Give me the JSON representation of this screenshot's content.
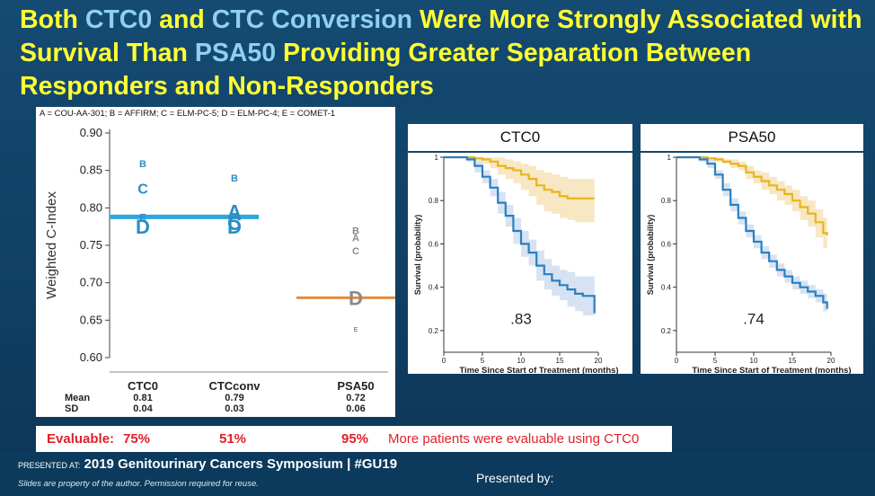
{
  "slide": {
    "title_segments": [
      {
        "text": "Both ",
        "highlight": false
      },
      {
        "text": "CTC0",
        "highlight": true
      },
      {
        "text": " and ",
        "highlight": false
      },
      {
        "text": "CTC Conversion",
        "highlight": true
      },
      {
        "text": " Were More Strongly Associated with Survival Than ",
        "highlight": false
      },
      {
        "text": "PSA50",
        "highlight": true
      },
      {
        "text": " Providing Greater Separation Between Responders and Non-Responders",
        "highlight": false
      }
    ],
    "legend_key": "A = COU-AA-301;  B = AFFIRM;  C = ELM-PC-5;  D = ELM-PC-4;  E = COMET-1",
    "colors": {
      "title_yellow": "#ffff33",
      "highlight_blue": "#8fd0f2",
      "red": "#e0212b"
    }
  },
  "chart_data": [
    {
      "type": "scatter",
      "title": "",
      "ylabel": "Weighted C-Index",
      "xlabel": "",
      "ylim": [
        0.6,
        0.9
      ],
      "yticks": [
        "0.90",
        "0.85",
        "0.80",
        "0.75",
        "0.70",
        "0.65",
        "0.60"
      ],
      "categories": [
        "CTC0",
        "CTCconv",
        "PSA50"
      ],
      "points": [
        {
          "category": "CTC0",
          "label": "B",
          "value": 0.859,
          "size": "small"
        },
        {
          "category": "CTC0",
          "label": "C",
          "value": 0.826,
          "size": "medium"
        },
        {
          "category": "CTC0",
          "label": "E",
          "value": 0.788,
          "size": "small"
        },
        {
          "category": "CTC0",
          "label": "D",
          "value": 0.775,
          "size": "large"
        },
        {
          "category": "CTCconv",
          "label": "B",
          "value": 0.84,
          "size": "small"
        },
        {
          "category": "CTCconv",
          "label": "A",
          "value": 0.795,
          "size": "large"
        },
        {
          "category": "CTCconv",
          "label": "C",
          "value": 0.78,
          "size": "large"
        },
        {
          "category": "CTCconv",
          "label": "D",
          "value": 0.775,
          "size": "large"
        },
        {
          "category": "PSA50",
          "label": "B",
          "value": 0.77,
          "size": "small"
        },
        {
          "category": "PSA50",
          "label": "A",
          "value": 0.76,
          "size": "small"
        },
        {
          "category": "PSA50",
          "label": "C",
          "value": 0.743,
          "size": "small"
        },
        {
          "category": "PSA50",
          "label": "D",
          "value": 0.68,
          "size": "large"
        },
        {
          "category": "PSA50",
          "label": "E",
          "value": 0.638,
          "size": "xsmall"
        }
      ],
      "mean_lines": [
        {
          "categories": [
            "CTC0",
            "CTCconv"
          ],
          "value": 0.788,
          "color": "#2da7de"
        },
        {
          "categories": [
            "PSA50"
          ],
          "value": 0.68,
          "color": "#e98a3c"
        }
      ],
      "stats": {
        "mean_label": "Mean",
        "sd_label": "SD",
        "mean": [
          "0.81",
          "0.79",
          "0.72"
        ],
        "sd": [
          "0.04",
          "0.03",
          "0.06"
        ]
      }
    },
    {
      "type": "line",
      "title": "CTC0",
      "xlabel": "Time Since Start of Treatment (months)",
      "ylabel": "Survival (probability)",
      "xlim": [
        0,
        20
      ],
      "ylim": [
        0.1,
        1.0
      ],
      "xticks": [
        "0",
        "5",
        "10",
        "15",
        "20"
      ],
      "yticks": [
        "1",
        "0.8",
        "0.6",
        "0.4",
        "0.2"
      ],
      "annotation": ".83",
      "series": [
        {
          "name": "responders",
          "color": "#e8b51c",
          "band": "#f4dfae",
          "x": [
            0,
            3,
            4,
            5,
            6,
            7,
            8,
            9,
            10,
            11,
            12,
            13,
            14,
            15,
            16,
            17,
            18,
            19.5
          ],
          "y": [
            1.0,
            1.0,
            0.995,
            0.99,
            0.98,
            0.96,
            0.95,
            0.94,
            0.92,
            0.9,
            0.87,
            0.85,
            0.84,
            0.82,
            0.81,
            0.81,
            0.81,
            0.81
          ],
          "upper": [
            1.0,
            1.0,
            1.0,
            1.0,
            1.0,
            1.0,
            0.99,
            0.98,
            0.97,
            0.96,
            0.94,
            0.93,
            0.92,
            0.91,
            0.9,
            0.9,
            0.9,
            0.9
          ],
          "lower": [
            1.0,
            1.0,
            0.98,
            0.97,
            0.95,
            0.92,
            0.9,
            0.88,
            0.85,
            0.82,
            0.78,
            0.75,
            0.74,
            0.72,
            0.71,
            0.7,
            0.7,
            0.7
          ]
        },
        {
          "name": "non-responders",
          "color": "#2a7fc1",
          "band": "#c9d9ee",
          "x": [
            0,
            3,
            4,
            5,
            6,
            7,
            8,
            9,
            10,
            11,
            12,
            13,
            14,
            15,
            16,
            17,
            18,
            19.5
          ],
          "y": [
            1.0,
            0.99,
            0.96,
            0.91,
            0.86,
            0.79,
            0.73,
            0.66,
            0.6,
            0.56,
            0.5,
            0.46,
            0.43,
            0.41,
            0.39,
            0.37,
            0.36,
            0.28
          ],
          "upper": [
            1.0,
            1.0,
            0.98,
            0.94,
            0.9,
            0.84,
            0.78,
            0.72,
            0.66,
            0.62,
            0.57,
            0.53,
            0.5,
            0.48,
            0.47,
            0.45,
            0.45,
            0.4
          ],
          "lower": [
            1.0,
            0.98,
            0.93,
            0.88,
            0.82,
            0.74,
            0.68,
            0.6,
            0.54,
            0.5,
            0.43,
            0.39,
            0.36,
            0.34,
            0.31,
            0.29,
            0.27,
            0.18
          ]
        }
      ]
    },
    {
      "type": "line",
      "title": "PSA50",
      "xlabel": "Time Since Start of Treatment (months)",
      "ylabel": "Survival (probability)",
      "xlim": [
        0,
        20
      ],
      "ylim": [
        0.1,
        1.0
      ],
      "xticks": [
        "0",
        "5",
        "10",
        "15",
        "20"
      ],
      "yticks": [
        "1",
        "0.8",
        "0.6",
        "0.4",
        "0.2"
      ],
      "annotation": ".74",
      "series": [
        {
          "name": "responders",
          "color": "#e8b51c",
          "band": "#f4dfae",
          "x": [
            0,
            3,
            4,
            5,
            6,
            7,
            8,
            9,
            10,
            11,
            12,
            13,
            14,
            15,
            16,
            17,
            18,
            19,
            19.5
          ],
          "y": [
            1.0,
            1.0,
            0.995,
            0.99,
            0.98,
            0.97,
            0.96,
            0.93,
            0.91,
            0.89,
            0.87,
            0.85,
            0.83,
            0.8,
            0.77,
            0.74,
            0.7,
            0.65,
            0.64
          ],
          "upper": [
            1.0,
            1.0,
            1.0,
            1.0,
            0.99,
            0.99,
            0.98,
            0.96,
            0.94,
            0.93,
            0.91,
            0.89,
            0.87,
            0.85,
            0.82,
            0.8,
            0.76,
            0.72,
            0.71
          ],
          "lower": [
            1.0,
            1.0,
            0.99,
            0.98,
            0.97,
            0.95,
            0.94,
            0.9,
            0.88,
            0.85,
            0.83,
            0.8,
            0.78,
            0.75,
            0.71,
            0.68,
            0.63,
            0.58,
            0.57
          ]
        },
        {
          "name": "non-responders",
          "color": "#2a7fc1",
          "band": "#c9d9ee",
          "x": [
            0,
            3,
            4,
            5,
            6,
            7,
            8,
            9,
            10,
            11,
            12,
            13,
            14,
            15,
            16,
            17,
            18,
            19,
            19.5
          ],
          "y": [
            1.0,
            0.99,
            0.97,
            0.92,
            0.85,
            0.78,
            0.72,
            0.66,
            0.61,
            0.56,
            0.52,
            0.48,
            0.45,
            0.42,
            0.4,
            0.38,
            0.36,
            0.33,
            0.3
          ],
          "upper": [
            1.0,
            1.0,
            0.99,
            0.94,
            0.88,
            0.81,
            0.75,
            0.69,
            0.64,
            0.59,
            0.55,
            0.51,
            0.48,
            0.45,
            0.43,
            0.41,
            0.39,
            0.37,
            0.35
          ],
          "lower": [
            1.0,
            0.98,
            0.95,
            0.9,
            0.82,
            0.75,
            0.69,
            0.63,
            0.58,
            0.53,
            0.49,
            0.45,
            0.42,
            0.39,
            0.37,
            0.35,
            0.33,
            0.29,
            0.25
          ]
        }
      ]
    }
  ],
  "evaluable": {
    "label": "Evaluable:",
    "ctc0": "75%",
    "ctcconv": "51%",
    "psa50": "95%",
    "note": "More patients were evaluable using CTC0"
  },
  "footer": {
    "presented_at_label": "PRESENTED AT:",
    "event": "2019 Genitourinary Cancers Symposium",
    "separator": "|",
    "hashtag": "#GU19",
    "disclaimer": "Slides are property of the author. Permission required for reuse.",
    "presented_by": "Presented by:"
  }
}
